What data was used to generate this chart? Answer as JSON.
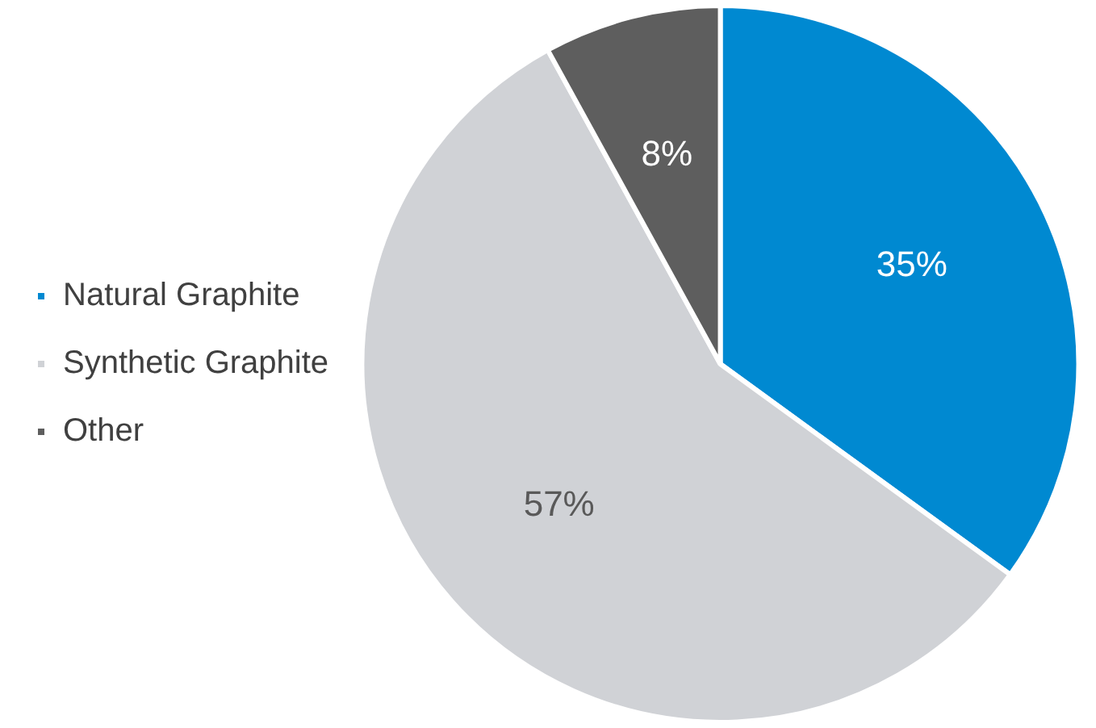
{
  "chart_data": {
    "type": "pie",
    "categories": [
      "Natural Graphite",
      "Synthetic Graphite",
      "Other"
    ],
    "values": [
      35,
      57,
      8
    ],
    "value_labels": [
      "35%",
      "57%",
      "8%"
    ],
    "colors": [
      "#0089d1",
      "#d0d2d6",
      "#5e5e5e"
    ],
    "legend": "left"
  }
}
